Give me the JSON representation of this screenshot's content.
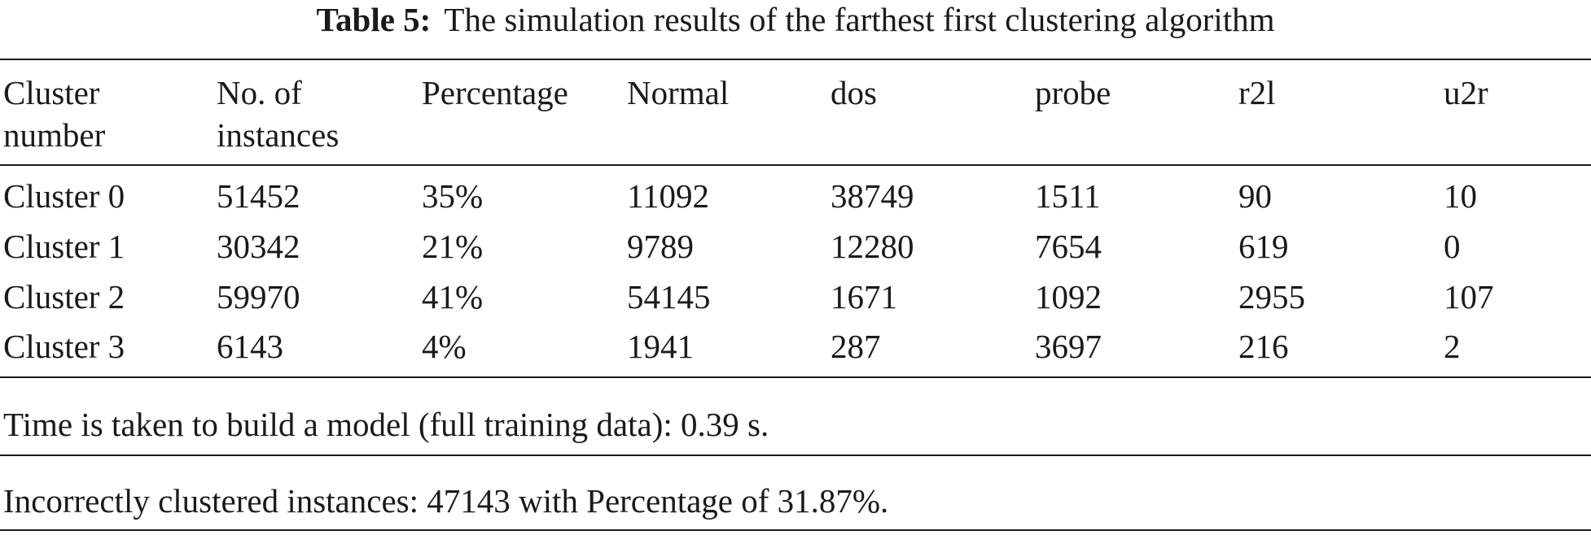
{
  "caption": {
    "label": "Table 5:",
    "text": "The simulation results of the farthest first clustering algorithm"
  },
  "table": {
    "headers": [
      [
        "Cluster",
        "number"
      ],
      [
        "No. of",
        "instances"
      ],
      [
        "Percentage"
      ],
      [
        "Normal"
      ],
      [
        "dos"
      ],
      [
        "probe"
      ],
      [
        "r2l"
      ],
      [
        "u2r"
      ]
    ],
    "rows": [
      [
        "Cluster 0",
        "51452",
        "35%",
        "11092",
        "38749",
        "1511",
        "90",
        "10"
      ],
      [
        "Cluster 1",
        "30342",
        "21%",
        "9789",
        "12280",
        "7654",
        "619",
        "0"
      ],
      [
        "Cluster 2",
        "59970",
        "41%",
        "54145",
        "1671",
        "1092",
        "2955",
        "107"
      ],
      [
        "Cluster 3",
        "6143",
        "4%",
        "1941",
        "287",
        "3697",
        "216",
        "2"
      ]
    ]
  },
  "footnotes": {
    "time": "Time is taken to build a model (full training data): 0.39 s.",
    "incorrect": "Incorrectly clustered instances: 47143 with Percentage of 31.87%."
  }
}
